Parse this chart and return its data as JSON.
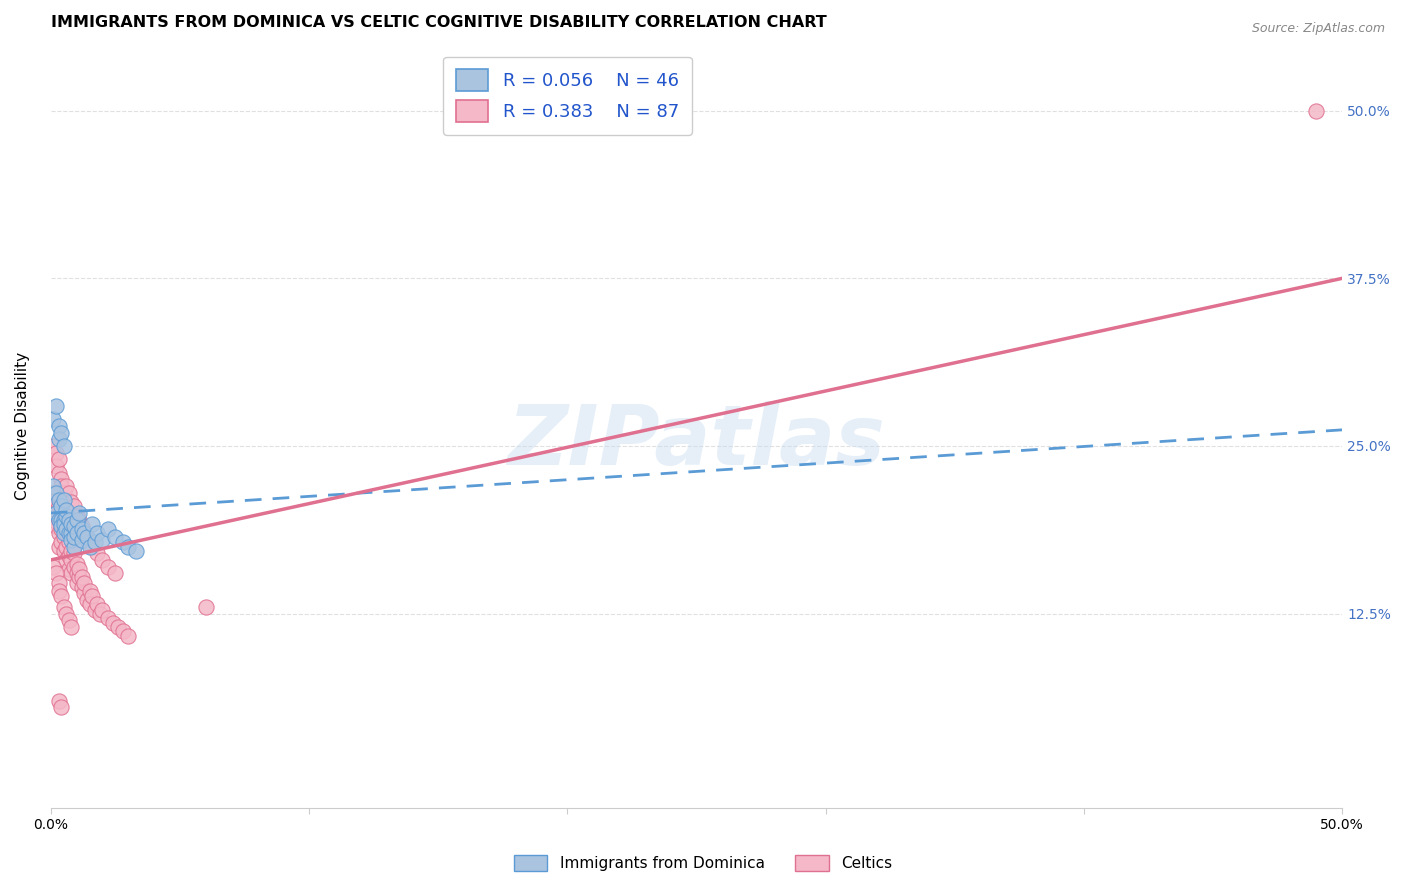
{
  "title": "IMMIGRANTS FROM DOMINICA VS CELTIC COGNITIVE DISABILITY CORRELATION CHART",
  "source": "Source: ZipAtlas.com",
  "ylabel": "Cognitive Disability",
  "xlim": [
    0.0,
    0.5
  ],
  "ylim": [
    -0.02,
    0.55
  ],
  "xticks": [
    0.0,
    0.1,
    0.2,
    0.3,
    0.4,
    0.5
  ],
  "xticklabels": [
    "0.0%",
    "",
    "",
    "",
    "",
    "50.0%"
  ],
  "ytick_positions": [
    0.125,
    0.25,
    0.375,
    0.5
  ],
  "ytick_labels_right": [
    "12.5%",
    "25.0%",
    "37.5%",
    "50.0%"
  ],
  "series1_color": "#aac4e0",
  "series1_edge": "#5b9bd5",
  "series2_color": "#f4b8c8",
  "series2_edge": "#e07090",
  "trend1_color": "#5b9bd5",
  "trend2_color": "#e07090",
  "background_color": "#ffffff",
  "grid_color": "#e0e0e0",
  "right_label_color": "#4472c4",
  "title_fontsize": 11.5,
  "label_fontsize": 11,
  "tick_fontsize": 10,
  "dominica_x": [
    0.001,
    0.002,
    0.002,
    0.003,
    0.003,
    0.004,
    0.004,
    0.004,
    0.005,
    0.005,
    0.005,
    0.005,
    0.006,
    0.006,
    0.006,
    0.007,
    0.007,
    0.008,
    0.008,
    0.008,
    0.009,
    0.009,
    0.009,
    0.01,
    0.01,
    0.011,
    0.012,
    0.012,
    0.013,
    0.014,
    0.015,
    0.016,
    0.017,
    0.018,
    0.02,
    0.022,
    0.025,
    0.028,
    0.03,
    0.033,
    0.001,
    0.002,
    0.003,
    0.003,
    0.004,
    0.005
  ],
  "dominica_y": [
    0.22,
    0.215,
    0.2,
    0.21,
    0.195,
    0.195,
    0.205,
    0.19,
    0.185,
    0.195,
    0.21,
    0.192,
    0.188,
    0.198,
    0.202,
    0.185,
    0.195,
    0.185,
    0.192,
    0.18,
    0.175,
    0.182,
    0.19,
    0.195,
    0.185,
    0.2,
    0.18,
    0.188,
    0.185,
    0.182,
    0.175,
    0.192,
    0.178,
    0.185,
    0.18,
    0.188,
    0.182,
    0.178,
    0.175,
    0.172,
    0.27,
    0.28,
    0.265,
    0.255,
    0.26,
    0.25
  ],
  "celtics_x": [
    0.001,
    0.001,
    0.001,
    0.002,
    0.002,
    0.002,
    0.003,
    0.003,
    0.003,
    0.003,
    0.004,
    0.004,
    0.004,
    0.005,
    0.005,
    0.005,
    0.005,
    0.006,
    0.006,
    0.006,
    0.007,
    0.007,
    0.007,
    0.008,
    0.008,
    0.008,
    0.009,
    0.009,
    0.01,
    0.01,
    0.01,
    0.011,
    0.011,
    0.012,
    0.012,
    0.013,
    0.013,
    0.014,
    0.015,
    0.015,
    0.016,
    0.017,
    0.018,
    0.019,
    0.02,
    0.022,
    0.024,
    0.026,
    0.028,
    0.03,
    0.001,
    0.002,
    0.002,
    0.003,
    0.003,
    0.004,
    0.004,
    0.005,
    0.005,
    0.006,
    0.007,
    0.008,
    0.009,
    0.01,
    0.011,
    0.012,
    0.013,
    0.014,
    0.015,
    0.016,
    0.018,
    0.02,
    0.022,
    0.025,
    0.06,
    0.001,
    0.002,
    0.003,
    0.003,
    0.004,
    0.005,
    0.006,
    0.007,
    0.008,
    0.49,
    0.003,
    0.004
  ],
  "celtics_y": [
    0.205,
    0.215,
    0.195,
    0.2,
    0.21,
    0.19,
    0.185,
    0.195,
    0.205,
    0.175,
    0.188,
    0.192,
    0.178,
    0.182,
    0.188,
    0.195,
    0.172,
    0.175,
    0.185,
    0.165,
    0.168,
    0.178,
    0.158,
    0.165,
    0.172,
    0.155,
    0.16,
    0.17,
    0.155,
    0.162,
    0.148,
    0.152,
    0.158,
    0.145,
    0.152,
    0.14,
    0.148,
    0.135,
    0.142,
    0.132,
    0.138,
    0.128,
    0.132,
    0.125,
    0.128,
    0.122,
    0.118,
    0.115,
    0.112,
    0.108,
    0.25,
    0.245,
    0.235,
    0.23,
    0.24,
    0.225,
    0.22,
    0.215,
    0.21,
    0.22,
    0.215,
    0.208,
    0.205,
    0.198,
    0.195,
    0.19,
    0.185,
    0.182,
    0.178,
    0.175,
    0.17,
    0.165,
    0.16,
    0.155,
    0.13,
    0.16,
    0.155,
    0.148,
    0.142,
    0.138,
    0.13,
    0.125,
    0.12,
    0.115,
    0.5,
    0.06,
    0.055
  ],
  "trend1_start_y": 0.2,
  "trend1_end_y": 0.262,
  "trend2_start_y": 0.165,
  "trend2_end_y": 0.375
}
